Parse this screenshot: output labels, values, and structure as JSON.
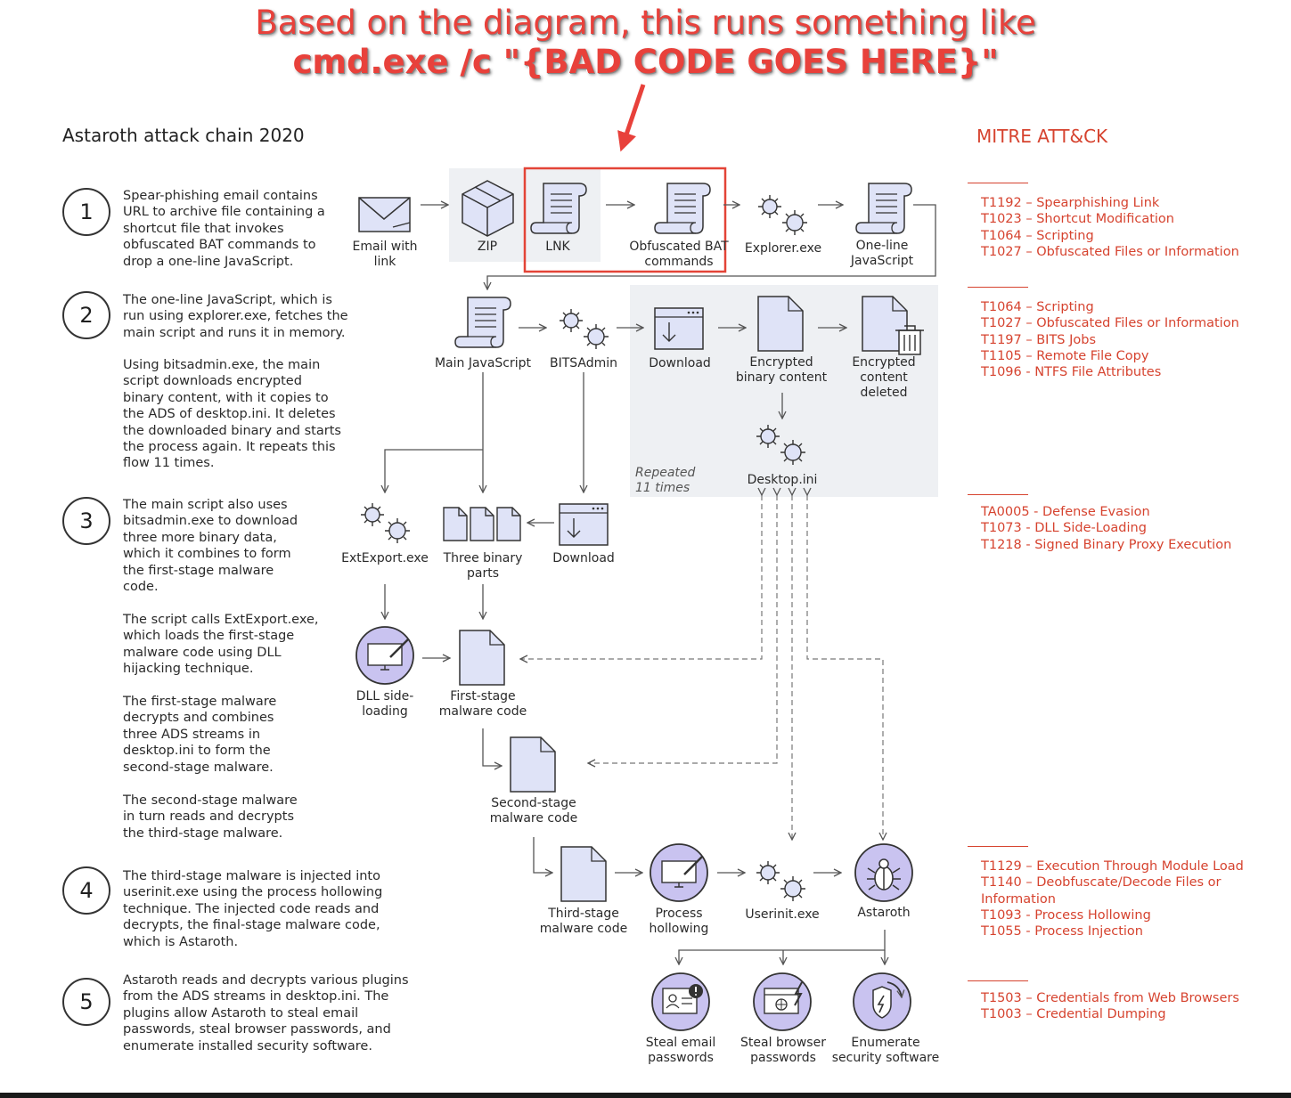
{
  "annotation": {
    "line1": "Based on the diagram, this runs something like",
    "line2": "cmd.exe /c \"{BAD CODE GOES HERE}\""
  },
  "title": "Astaroth attack chain 2020",
  "mitre_title": "MITRE ATT&CK",
  "steps": [
    {
      "number": "1",
      "paragraphs": [
        "Spear-phishing email contains\nURL to archive file containing a\nshortcut file that invokes\nobfuscated BAT commands to\ndrop a one-line JavaScript."
      ]
    },
    {
      "number": "2",
      "paragraphs": [
        "The one-line JavaScript, which is\nrun using explorer.exe, fetches the\nmain script and runs it in memory.",
        "Using bitsadmin.exe, the main\nscript downloads encrypted\nbinary content, with it copies to\nthe ADS of desktop.ini. It deletes\nthe downloaded binary and starts\nthe process again. It repeats this\nflow 11 times."
      ]
    },
    {
      "number": "3",
      "paragraphs": [
        "The main script also uses\nbitsadmin.exe to download\nthree more binary data,\nwhich it combines to form\nthe first-stage malware\ncode.",
        "The script calls ExtExport.exe,\nwhich loads the first-stage\nmalware code using DLL\nhijacking technique.",
        "The first-stage malware\ndecrypts and combines\nthree ADS streams in\ndesktop.ini to form the\nsecond-stage malware.",
        "The second-stage malware\nin turn reads and decrypts\nthe third-stage malware."
      ]
    },
    {
      "number": "4",
      "paragraphs": [
        "The third-stage malware is injected into\nuserinit.exe using the process hollowing\ntechnique. The injected code reads and\ndecrypts, the final-stage malware code,\nwhich is Astaroth."
      ]
    },
    {
      "number": "5",
      "paragraphs": [
        "Astaroth reads and decrypts various plugins\nfrom the ADS streams in desktop.ini. The\nplugins allow Astaroth to steal email\npasswords, steal browser passwords, and\nenumerate installed security software."
      ]
    }
  ],
  "nodes": {
    "email": "Email with\nlink",
    "zip": "ZIP",
    "lnk": "LNK",
    "bat": "Obfuscated BAT\ncommands",
    "explorer": "Explorer.exe",
    "oneline": "One-line\nJavaScript",
    "mainjs": "Main JavaScript",
    "bitsadmin": "BITSAdmin",
    "download1": "Download",
    "encrypted": "Encrypted\nbinary content",
    "deleted": "Encrypted\ncontent\ndeleted",
    "repeated": "Repeated\n11 times",
    "desktopini": "Desktop.ini",
    "extexport": "ExtExport.exe",
    "threeparts": "Three binary\nparts",
    "download2": "Download",
    "dll": "DLL side-\nloading",
    "first": "First-stage\nmalware code",
    "second": "Second-stage\nmalware code",
    "third": "Third-stage\nmalware code",
    "hollowing": "Process\nhollowing",
    "userinit": "Userinit.exe",
    "astaroth": "Astaroth",
    "stealemail": "Steal email\npasswords",
    "stealbrowser": "Steal browser\npasswords",
    "enumerate": "Enumerate\nsecurity software"
  },
  "mitre_groups": [
    [
      "T1192 – Spearphishing Link",
      "T1023 – Shortcut Modification",
      "T1064 – Scripting",
      "T1027 – Obfuscated Files or Information"
    ],
    [
      "T1064 – Scripting",
      "T1027 – Obfuscated Files or Information",
      "T1197 – BITS Jobs",
      "T1105 – Remote File Copy",
      "T1096 - NTFS File Attributes"
    ],
    [
      "TA0005 - Defense Evasion",
      "T1073 - DLL Side-Loading",
      "T1218 - Signed Binary Proxy Execution"
    ],
    [
      "T1129 – Execution Through Module Load",
      "T1140 – Deobfuscate/Decode Files or",
      "Information",
      "T1093 - Process Hollowing",
      "T1055 - Process Injection"
    ],
    [
      "T1503 – Credentials from Web Browsers",
      "T1003 – Credential Dumping"
    ]
  ],
  "colors": {
    "accent": "#d6432f",
    "annotation": "#e8413b",
    "icon_fill": "#dfe3f7",
    "circle_fill": "#c9c3f0",
    "panel": "#eef0f3"
  }
}
